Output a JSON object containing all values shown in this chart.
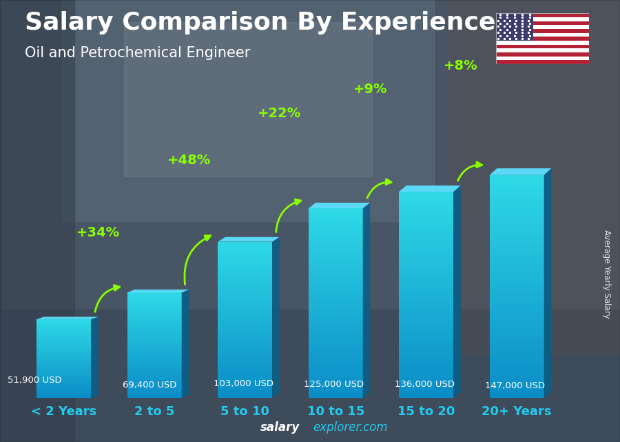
{
  "title": "Salary Comparison By Experience",
  "subtitle": "Oil and Petrochemical Engineer",
  "categories": [
    "< 2 Years",
    "2 to 5",
    "5 to 10",
    "10 to 15",
    "15 to 20",
    "20+ Years"
  ],
  "values": [
    51900,
    69400,
    103000,
    125000,
    136000,
    147000
  ],
  "salary_labels": [
    "51,900 USD",
    "69,400 USD",
    "103,000 USD",
    "125,000 USD",
    "136,000 USD",
    "147,000 USD"
  ],
  "pct_labels": [
    "+34%",
    "+48%",
    "+22%",
    "+9%",
    "+8%"
  ],
  "bar_front_top": "#29c8f0",
  "bar_front_mid": "#1ab0e0",
  "bar_front_bot": "#0d7cb5",
  "bar_right_color": "#0a6090",
  "bar_top_color": "#55deff",
  "bg_color": "#7a8a9a",
  "title_color": "#ffffff",
  "subtitle_color": "#ffffff",
  "salary_label_color": "#ffffff",
  "pct_color": "#88ff00",
  "arrow_color": "#88ff00",
  "xlabel_color": "#22ccee",
  "watermark_salary_color": "#ffffff",
  "watermark_explorer_color": "#22ccee",
  "side_label": "Average Yearly Salary",
  "ylim": [
    0,
    175000
  ],
  "figsize": [
    9.0,
    6.41
  ]
}
